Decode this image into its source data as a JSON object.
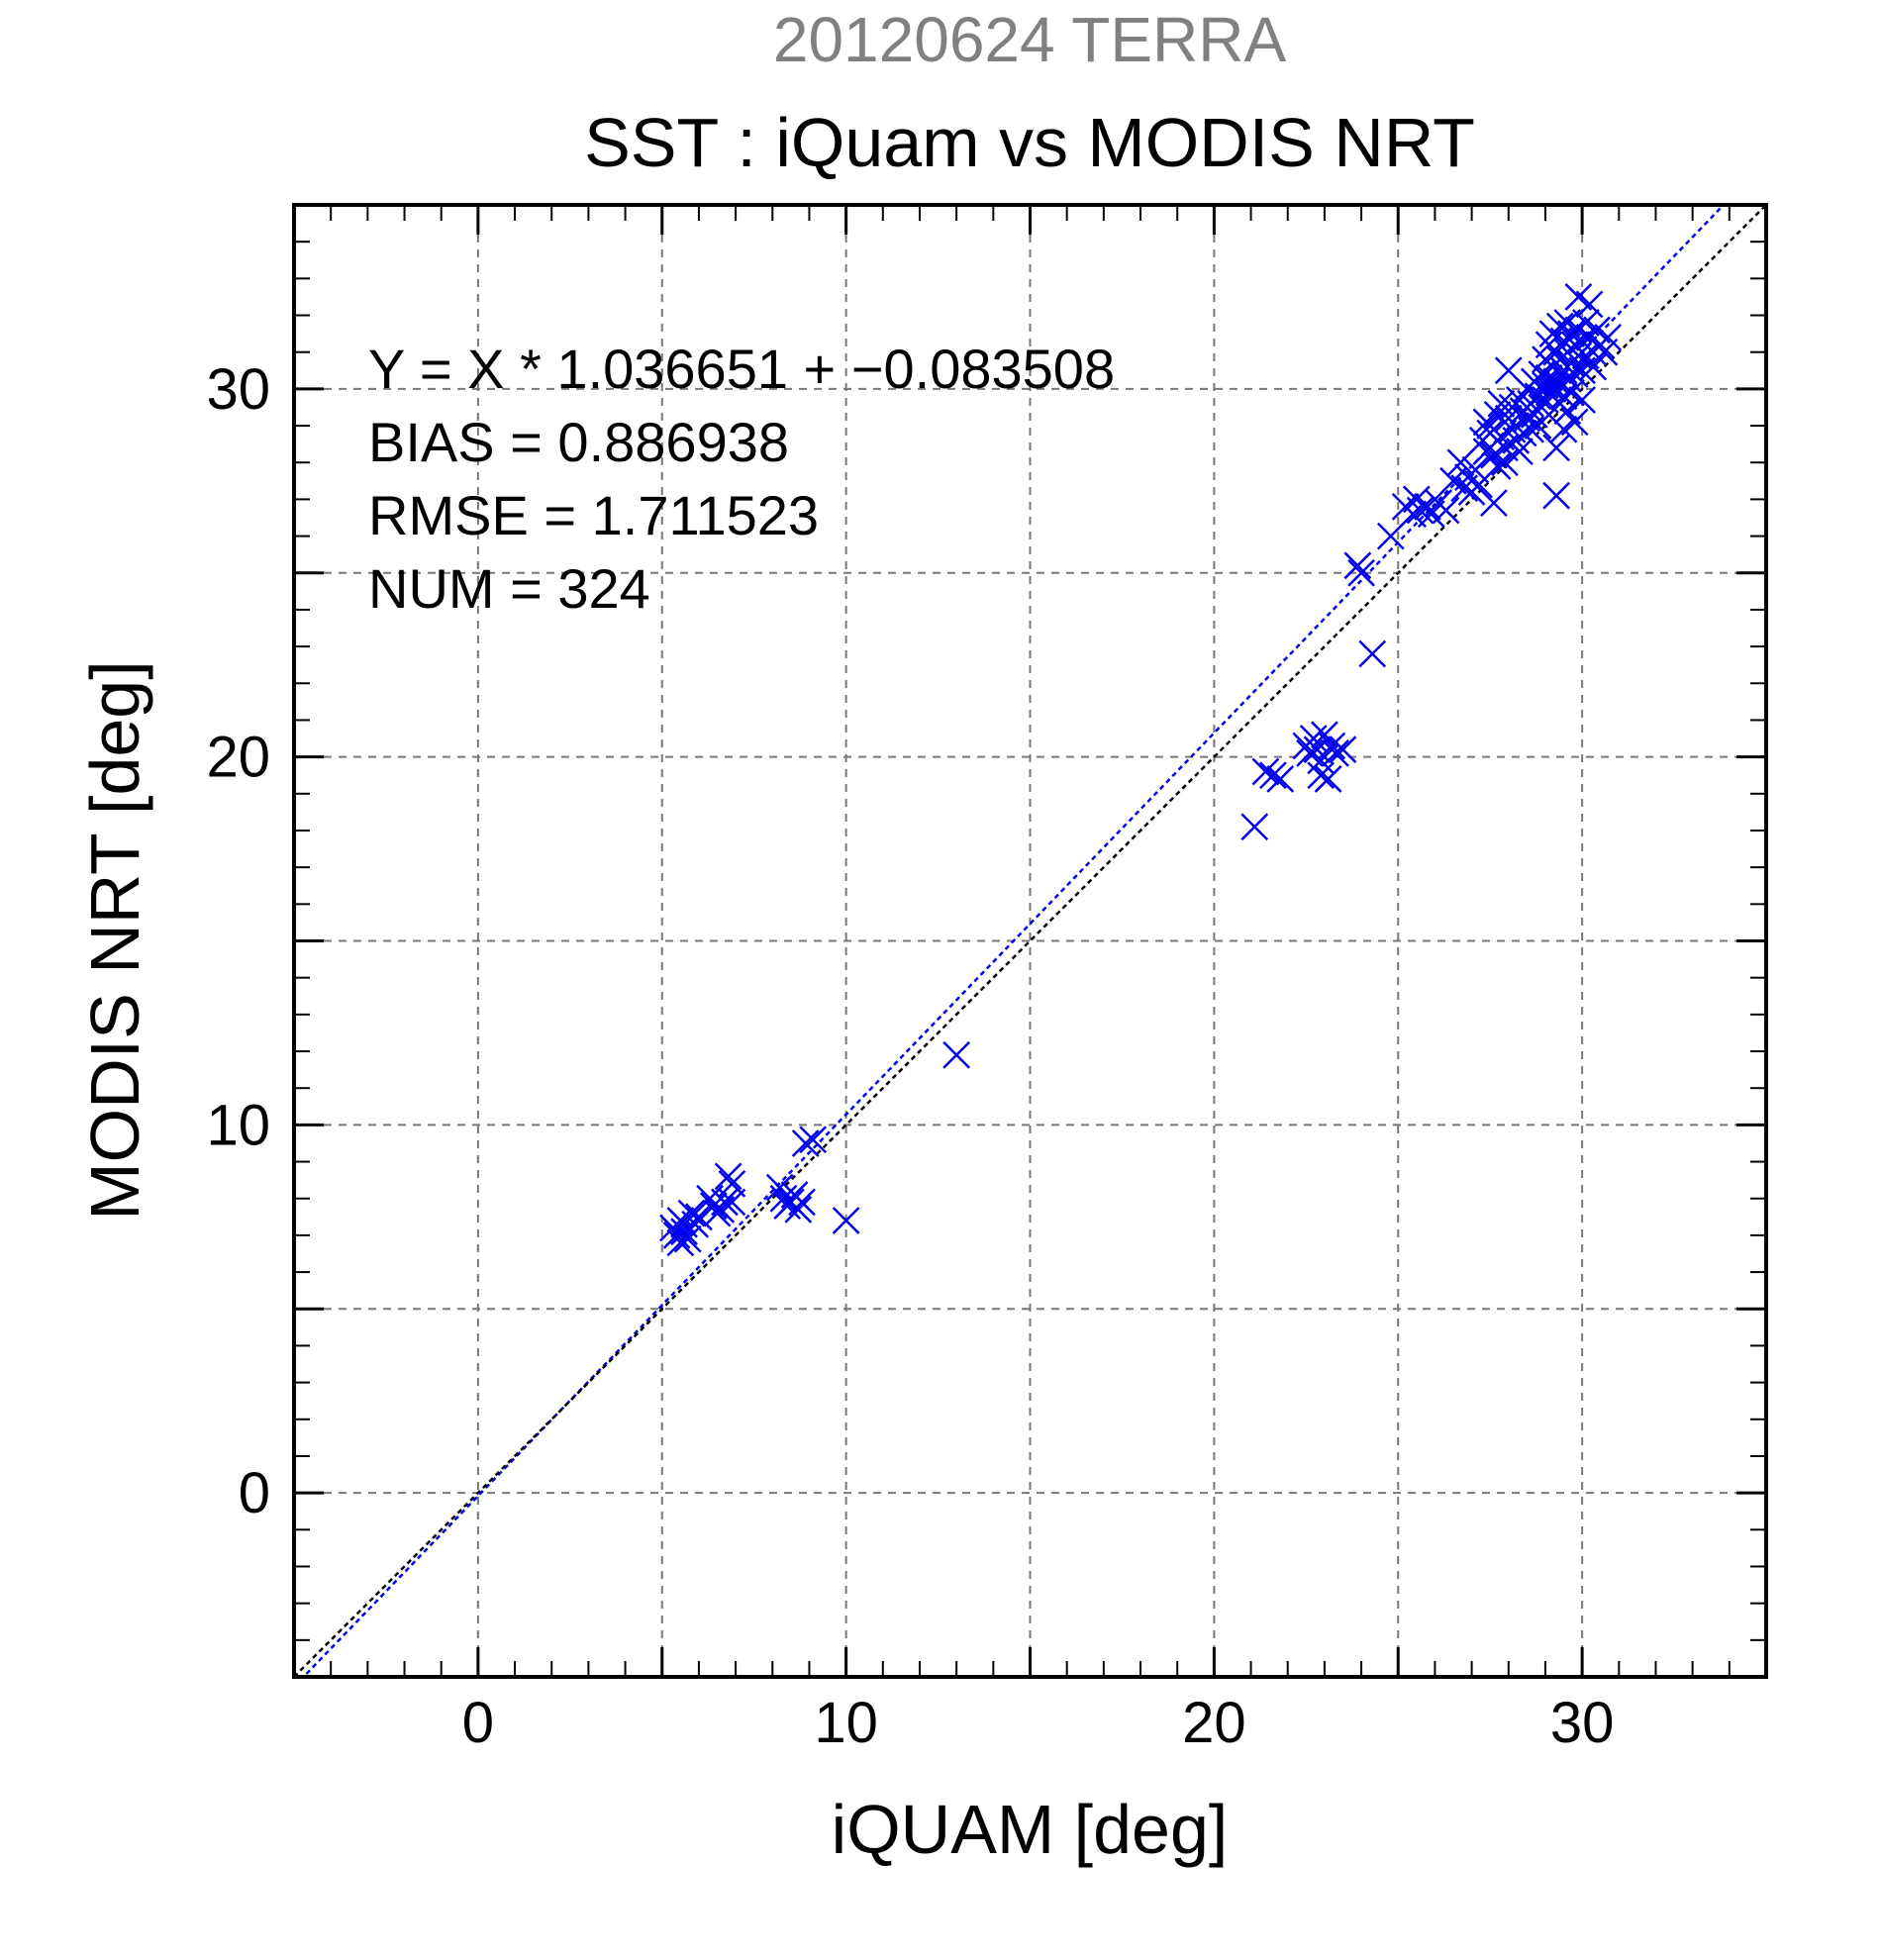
{
  "header": {
    "date_label": "20120624 TERRA",
    "title": "SST : iQuam vs MODIS NRT"
  },
  "stats": {
    "regression": "Y = X * 1.036651 + −0.083508",
    "bias": "BIAS = 0.886938",
    "rmse": "RMSE = 1.711523",
    "num": "NUM = 324"
  },
  "colors": {
    "points": "#0000ee",
    "fit_line": "#0000ee",
    "identity_line": "#000000",
    "grid": "#777777",
    "date_label": "#808080"
  },
  "chart_data": {
    "type": "scatter",
    "title": "SST : iQuam vs MODIS NRT",
    "subtitle": "20120624 TERRA",
    "xlabel": "iQUAM [deg]",
    "ylabel": "MODIS NRT [deg]",
    "xlim": [
      -5,
      35
    ],
    "ylim": [
      -5,
      35
    ],
    "xticks": [
      0,
      10,
      20,
      30
    ],
    "yticks": [
      0,
      10,
      20,
      30
    ],
    "xtick_labels": [
      "0",
      "10",
      "20",
      "30"
    ],
    "ytick_labels": [
      "0",
      "10",
      "20",
      "30"
    ],
    "grid": true,
    "marker": "x",
    "lines": [
      {
        "kind": "fit",
        "slope": 1.036651,
        "intercept": -0.083508
      },
      {
        "kind": "identity",
        "slope": 1,
        "intercept": 0
      }
    ],
    "points": [
      [
        5.3,
        7.2
      ],
      [
        5.4,
        7.0
      ],
      [
        5.5,
        7.4
      ],
      [
        5.6,
        7.1
      ],
      [
        5.7,
        6.9
      ],
      [
        5.5,
        6.8
      ],
      [
        5.8,
        7.6
      ],
      [
        5.9,
        7.3
      ],
      [
        6.0,
        7.5
      ],
      [
        5.6,
        7.3
      ],
      [
        6.4,
        7.8
      ],
      [
        6.5,
        7.6
      ],
      [
        6.7,
        7.9
      ],
      [
        6.8,
        8.6
      ],
      [
        6.9,
        8.4
      ],
      [
        6.6,
        7.7
      ],
      [
        6.3,
        8.0
      ],
      [
        6.9,
        7.9
      ],
      [
        8.2,
        8.3
      ],
      [
        8.3,
        8.0
      ],
      [
        8.4,
        7.8
      ],
      [
        8.5,
        7.9
      ],
      [
        8.6,
        8.1
      ],
      [
        8.7,
        7.7
      ],
      [
        8.8,
        7.9
      ],
      [
        8.9,
        9.5
      ],
      [
        9.1,
        9.6
      ],
      [
        10.0,
        7.4
      ],
      [
        13.0,
        11.9
      ],
      [
        21.1,
        18.1
      ],
      [
        21.4,
        19.6
      ],
      [
        21.6,
        19.5
      ],
      [
        21.8,
        19.4
      ],
      [
        22.5,
        20.3
      ],
      [
        22.6,
        20.1
      ],
      [
        22.7,
        20.5
      ],
      [
        22.8,
        20.2
      ],
      [
        22.9,
        19.9
      ],
      [
        23.0,
        20.6
      ],
      [
        23.1,
        19.4
      ],
      [
        23.2,
        20.3
      ],
      [
        23.3,
        20.1
      ],
      [
        23.5,
        20.2
      ],
      [
        22.9,
        19.5
      ],
      [
        23.9,
        25.2
      ],
      [
        24.0,
        25.0
      ],
      [
        24.3,
        22.8
      ],
      [
        24.8,
        26.0
      ],
      [
        25.2,
        26.8
      ],
      [
        25.4,
        26.6
      ],
      [
        25.5,
        27.0
      ],
      [
        25.6,
        26.7
      ],
      [
        25.8,
        26.8
      ],
      [
        25.9,
        26.6
      ],
      [
        26.1,
        26.9
      ],
      [
        26.3,
        26.7
      ],
      [
        26.5,
        27.5
      ],
      [
        26.7,
        28.0
      ],
      [
        26.8,
        27.3
      ],
      [
        26.9,
        27.6
      ],
      [
        27.0,
        27.2
      ],
      [
        27.1,
        27.8
      ],
      [
        27.2,
        27.4
      ],
      [
        27.3,
        28.6
      ],
      [
        27.4,
        29.1
      ],
      [
        27.4,
        28.3
      ],
      [
        27.5,
        29.0
      ],
      [
        27.5,
        28.8
      ],
      [
        27.6,
        28.2
      ],
      [
        27.6,
        26.9
      ],
      [
        27.7,
        29.3
      ],
      [
        27.7,
        27.9
      ],
      [
        27.8,
        28.7
      ],
      [
        27.8,
        29.6
      ],
      [
        27.9,
        28.4
      ],
      [
        27.9,
        28.0
      ],
      [
        28.0,
        29.2
      ],
      [
        28.0,
        30.5
      ],
      [
        28.1,
        28.9
      ],
      [
        28.1,
        29.5
      ],
      [
        28.2,
        28.6
      ],
      [
        28.2,
        29.0
      ],
      [
        28.3,
        29.7
      ],
      [
        28.3,
        28.3
      ],
      [
        28.4,
        29.4
      ],
      [
        28.4,
        28.8
      ],
      [
        28.5,
        30.0
      ],
      [
        28.5,
        29.2
      ],
      [
        28.6,
        28.9
      ],
      [
        28.6,
        29.6
      ],
      [
        28.7,
        30.2
      ],
      [
        28.7,
        29.3
      ],
      [
        28.8,
        29.8
      ],
      [
        28.8,
        29.0
      ],
      [
        28.9,
        30.4
      ],
      [
        28.9,
        29.5
      ],
      [
        29.0,
        30.8
      ],
      [
        29.0,
        29.7
      ],
      [
        29.0,
        30.1
      ],
      [
        29.1,
        31.2
      ],
      [
        29.1,
        30.3
      ],
      [
        29.1,
        29.9
      ],
      [
        29.2,
        31.5
      ],
      [
        29.2,
        30.6
      ],
      [
        29.2,
        30.0
      ],
      [
        29.3,
        28.4
      ],
      [
        29.3,
        27.1
      ],
      [
        29.3,
        31.0
      ],
      [
        29.3,
        30.2
      ],
      [
        29.4,
        31.7
      ],
      [
        29.4,
        30.8
      ],
      [
        29.4,
        29.6
      ],
      [
        29.5,
        31.3
      ],
      [
        29.5,
        30.5
      ],
      [
        29.5,
        29.8
      ],
      [
        29.5,
        28.9
      ],
      [
        29.6,
        31.8
      ],
      [
        29.6,
        31.0
      ],
      [
        29.6,
        30.3
      ],
      [
        29.6,
        29.4
      ],
      [
        29.7,
        31.5
      ],
      [
        29.7,
        30.7
      ],
      [
        29.7,
        29.9
      ],
      [
        29.8,
        31.2
      ],
      [
        29.8,
        30.4
      ],
      [
        29.8,
        29.1
      ],
      [
        29.9,
        32.5
      ],
      [
        29.9,
        31.6
      ],
      [
        29.9,
        30.9
      ],
      [
        30.0,
        31.3
      ],
      [
        30.0,
        30.5
      ],
      [
        30.0,
        29.7
      ],
      [
        30.1,
        31.8
      ],
      [
        30.1,
        30.9
      ],
      [
        30.2,
        32.3
      ],
      [
        30.2,
        31.4
      ],
      [
        30.3,
        31.0
      ],
      [
        30.3,
        30.6
      ],
      [
        30.4,
        31.6
      ],
      [
        30.5,
        31.2
      ],
      [
        30.6,
        31.0
      ],
      [
        30.7,
        31.4
      ]
    ]
  }
}
